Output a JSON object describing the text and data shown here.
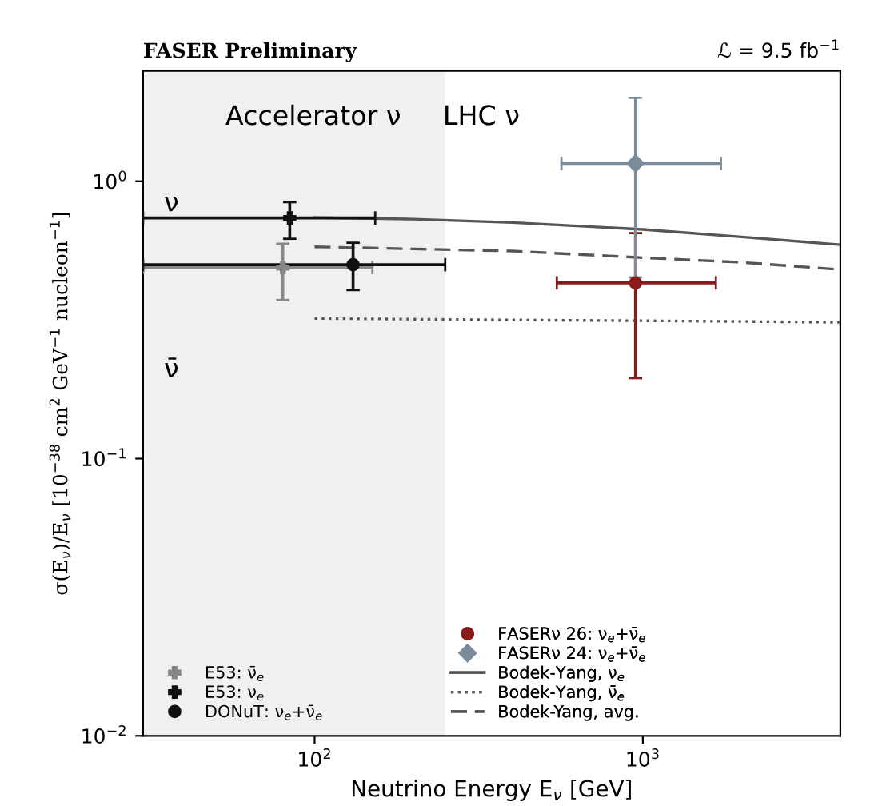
{
  "chart_data": {
    "type": "scatter",
    "title": "FASER Preliminary",
    "subtitle": "ℒ = 9.5 fb$^{−1}$",
    "xlabel": "Neutrino Energy E$_{ν}$ [GeV]",
    "ylabel": "σ(E$_{ν}$)/E$_{ν}$ [10$^{−38}$ cm$^{2}$ GeV$^{−1}$ nucleon$^{−1}$]",
    "log": "xy",
    "xlim": [
      30,
      4000
    ],
    "ylim": [
      0.01,
      2.5
    ],
    "xticks": [
      {
        "value": 100,
        "label": "10$^{2}$"
      },
      {
        "value": 1000,
        "label": "10$^{3}$"
      }
    ],
    "yticks": [
      {
        "value": 0.01,
        "label": "10$^{−2}$"
      },
      {
        "value": 0.1,
        "label": "10$^{−1}$"
      },
      {
        "value": 1,
        "label": "10$^{0}$"
      }
    ],
    "grid": false,
    "legend": "bottom",
    "bands": [
      {
        "axis": "x",
        "from": 30,
        "to": 250,
        "color": "#f0f0f0"
      }
    ],
    "annotations": [
      "Accelerator ν",
      "LHC ν",
      "ν",
      "ν̄"
    ],
    "series": [
      {
        "name": "E53: ν̄$_{e}$",
        "marker": "cross",
        "color": "#888888",
        "x": [
          80
        ],
        "values": [
          0.488
        ],
        "errors": [
          [
            0.373,
            0.595
          ]
        ],
        "xerrors": [
          [
            30,
            150
          ]
        ]
      },
      {
        "name": "E53: ν$_{e}$",
        "marker": "cross",
        "color": "#111111",
        "x": [
          84
        ],
        "values": [
          0.737
        ],
        "errors": [
          [
            0.62,
            0.84
          ]
        ],
        "xerrors": [
          [
            30,
            153
          ]
        ]
      },
      {
        "name": "DONuT: ν$_{e}$+ν̄$_{e}$",
        "marker": "circle",
        "color": "#111111",
        "x": [
          131
        ],
        "values": [
          0.5
        ],
        "errors": [
          [
            0.405,
            0.6
          ]
        ],
        "xerrors": [
          [
            30,
            250
          ]
        ]
      },
      {
        "name": "FASERν 26: ν$_{e}$+ν̄$_{e}$",
        "marker": "circle",
        "color": "#8b1a1a",
        "x": [
          950
        ],
        "values": [
          0.43
        ],
        "errors": [
          [
            0.195,
            0.65
          ]
        ],
        "xerrors": [
          [
            547,
            1670
          ]
        ]
      },
      {
        "name": "FASERν 24: ν$_{e}$+ν̄$_{e}$",
        "marker": "diamond",
        "color": "#7a8b9c",
        "x": [
          950
        ],
        "values": [
          1.16
        ],
        "errors": [
          [
            0.45,
            2.0
          ]
        ],
        "xerrors": [
          [
            565,
            1730
          ]
        ]
      },
      {
        "name": "Bodek-Yang, ν$_{e}$",
        "type": "line",
        "line_style": "solid",
        "color": "#555555",
        "x": [
          100,
          200,
          400,
          1000,
          2000,
          4000
        ],
        "values": [
          0.74,
          0.73,
          0.71,
          0.67,
          0.63,
          0.59
        ]
      },
      {
        "name": "Bodek-Yang, ν̄$_{e}$",
        "type": "line",
        "line_style": "dotted",
        "color": "#555555",
        "x": [
          100,
          200,
          400,
          1000,
          2000,
          4000
        ],
        "values": [
          0.32,
          0.318,
          0.316,
          0.314,
          0.312,
          0.31
        ]
      },
      {
        "name": "Bodek-Yang, avg.",
        "type": "line",
        "line_style": "dashed",
        "color": "#555555",
        "x": [
          100,
          200,
          400,
          1000,
          2000,
          4000
        ],
        "values": [
          0.58,
          0.57,
          0.56,
          0.53,
          0.51,
          0.48
        ]
      }
    ]
  }
}
